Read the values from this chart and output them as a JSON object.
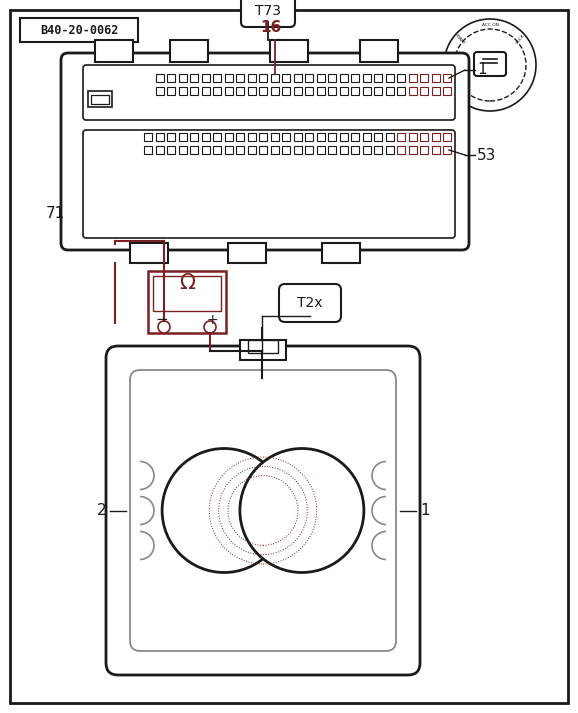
{
  "bg_color": "#ffffff",
  "border_color": "#1a1a1a",
  "dark_red": "#7B2020",
  "mid_gray": "#888888",
  "label_B40": "B40-20-0062",
  "label_16": "16",
  "label_1_top": "1",
  "label_53": "53",
  "label_71": "71",
  "label_T73": "T73",
  "label_T2x": "T2x",
  "label_1_bot": "1",
  "label_2": "2"
}
